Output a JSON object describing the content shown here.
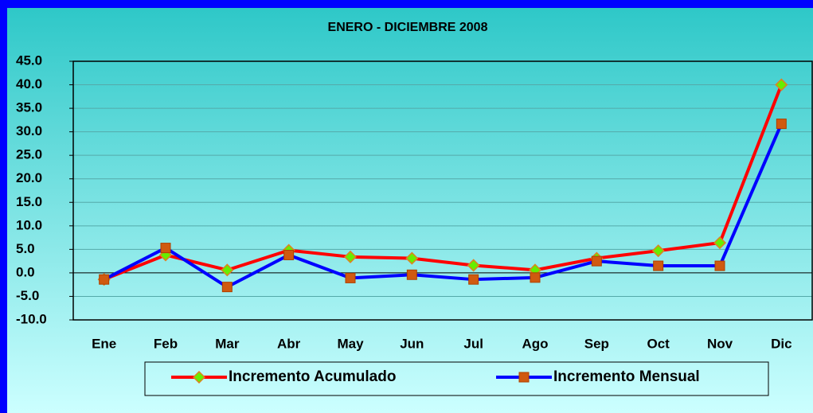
{
  "chart_data": {
    "type": "line",
    "title": "ENERO - DICIEMBRE 2008",
    "categories": [
      "Ene",
      "Feb",
      "Mar",
      "Abr",
      "May",
      "Jun",
      "Jul",
      "Ago",
      "Sep",
      "Oct",
      "Nov",
      "Dic"
    ],
    "series": [
      {
        "name": "Incremento Acumulado",
        "color": "#ff0000",
        "marker": "diamond",
        "marker_color": "#66ee00",
        "values": [
          -1.4,
          3.8,
          0.6,
          4.8,
          3.4,
          3.1,
          1.6,
          0.6,
          3.1,
          4.7,
          6.4,
          40.0
        ]
      },
      {
        "name": "Incremento Mensual",
        "color": "#0000ff",
        "marker": "square",
        "marker_color": "#d05a10",
        "values": [
          -1.4,
          5.3,
          -3.0,
          3.8,
          -1.1,
          -0.4,
          -1.4,
          -1.0,
          2.5,
          1.5,
          1.5,
          31.7
        ]
      }
    ],
    "ylim": [
      -10,
      45
    ],
    "yticks": [
      {
        "value": -10,
        "label": "-10.0"
      },
      {
        "value": -5,
        "label": "-5.0"
      },
      {
        "value": 0,
        "label": "0.0"
      },
      {
        "value": 5,
        "label": "5.0"
      },
      {
        "value": 10,
        "label": "10.0"
      },
      {
        "value": 15,
        "label": "15.0"
      },
      {
        "value": 20,
        "label": "20.0"
      },
      {
        "value": 25,
        "label": "25.0"
      },
      {
        "value": 30,
        "label": "30.0"
      },
      {
        "value": 35,
        "label": "35.0"
      },
      {
        "value": 40,
        "label": "40.0"
      },
      {
        "value": 45,
        "label": "45.0"
      }
    ],
    "grid": true,
    "legend": "bottom"
  }
}
